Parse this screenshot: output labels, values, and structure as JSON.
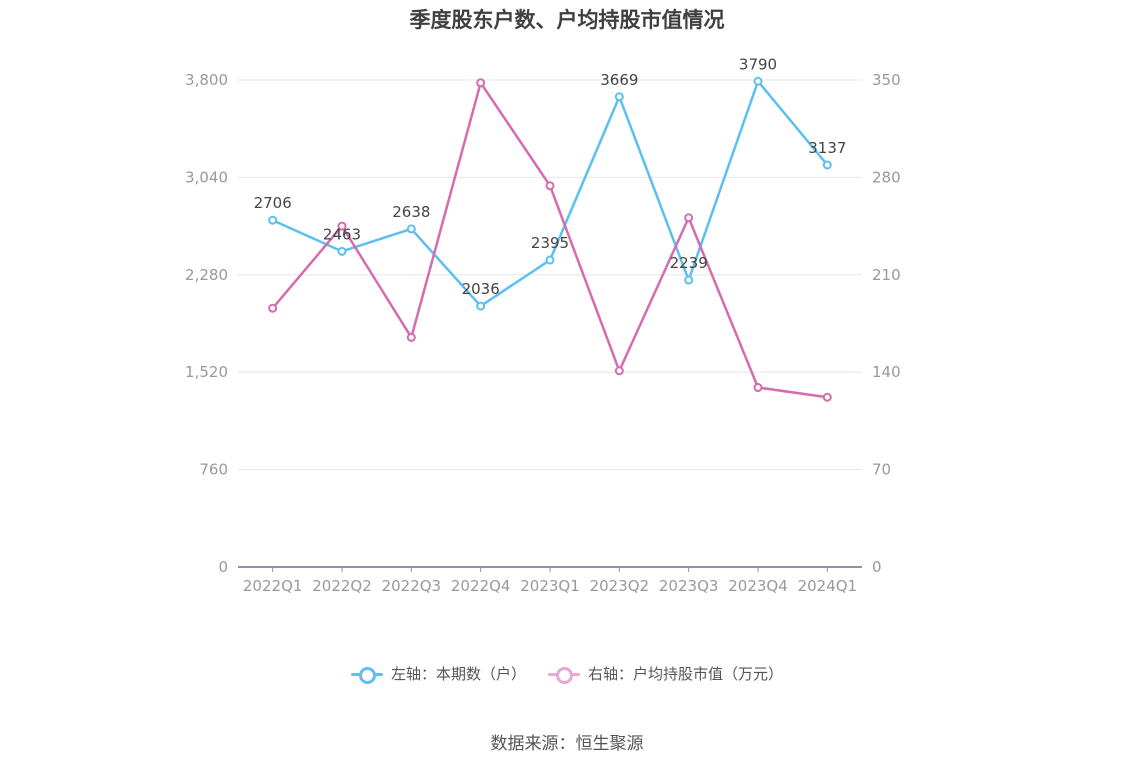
{
  "colors": {
    "left_series": "#5BC0F0",
    "right_series": "#D56BB0",
    "grid": "#E3E6F0",
    "axis": "#8F92A3",
    "tick_text": "#999999",
    "label_text": "#444444"
  },
  "chart_data": {
    "type": "line",
    "title": "季度股东户数、户均持股市值情况",
    "categories": [
      "2022Q1",
      "2022Q2",
      "2022Q3",
      "2022Q4",
      "2023Q1",
      "2023Q2",
      "2023Q3",
      "2023Q4",
      "2024Q1"
    ],
    "y_left": {
      "ticks": [
        "0",
        "760",
        "1,520",
        "2,280",
        "3,040",
        "3,800"
      ],
      "range": [
        0,
        3800
      ]
    },
    "y_right": {
      "ticks": [
        "0",
        "70",
        "140",
        "210",
        "280",
        "350"
      ],
      "range": [
        0,
        350
      ]
    },
    "grid": true,
    "legend_position": "bottom",
    "series": [
      {
        "name": "左轴：本期数（户）",
        "axis": "left",
        "color": "#5BC0F0",
        "values": [
          2706,
          2463,
          2638,
          2036,
          2395,
          3669,
          2239,
          3790,
          3137
        ],
        "labels": [
          "2706",
          "2463",
          "2638",
          "2036",
          "2395",
          "3669",
          "2239",
          "3790",
          "3137"
        ]
      },
      {
        "name": "右轴：户均持股市值（万元）",
        "axis": "right",
        "color": "#D56BB0",
        "values": [
          186,
          245,
          165,
          348,
          274,
          141,
          251,
          129,
          122
        ]
      }
    ]
  },
  "source_text": "数据来源：恒生聚源"
}
